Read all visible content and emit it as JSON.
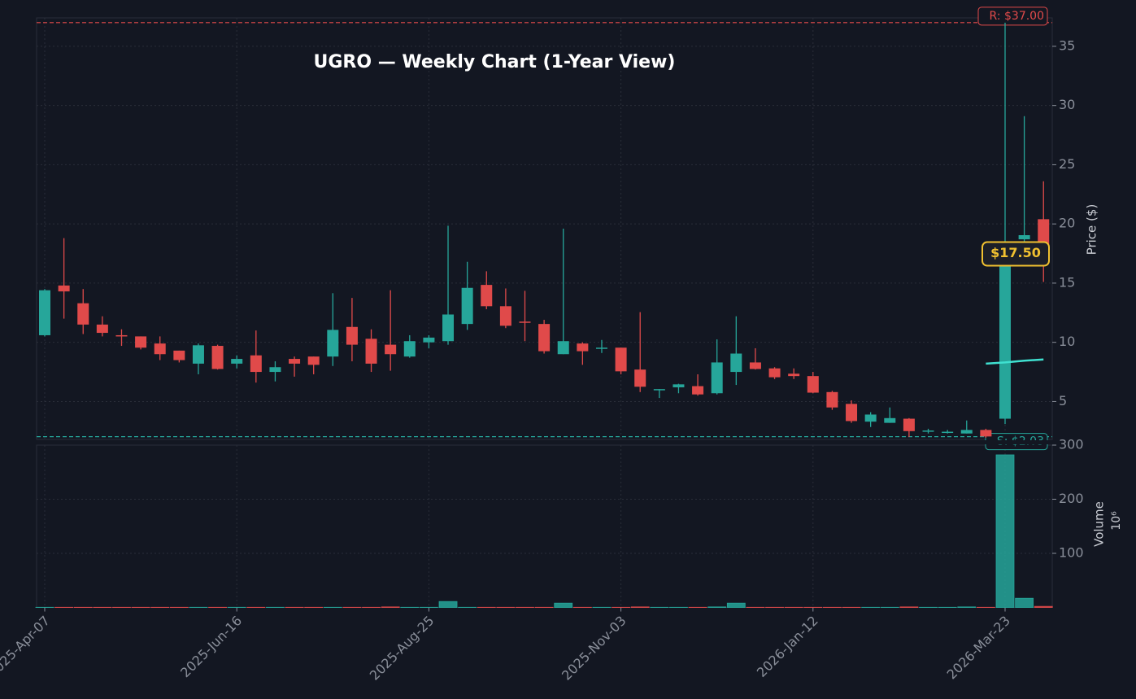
{
  "chart_data": {
    "type": "candlestick",
    "title": "UGRO — Weekly Chart (1-Year View)",
    "ylabel": "Price ($)",
    "x": [
      "2025-Apr-07",
      "2025-Apr-14",
      "2025-Apr-21",
      "2025-Apr-28",
      "2025-May-05",
      "2025-May-12",
      "2025-May-19",
      "2025-May-26",
      "2025-Jun-02",
      "2025-Jun-09",
      "2025-Jun-16",
      "2025-Jun-23",
      "2025-Jun-30",
      "2025-Jul-07",
      "2025-Jul-14",
      "2025-Jul-21",
      "2025-Jul-28",
      "2025-Aug-04",
      "2025-Aug-11",
      "2025-Aug-18",
      "2025-Aug-25",
      "2025-Sep-01",
      "2025-Sep-08",
      "2025-Sep-15",
      "2025-Sep-22",
      "2025-Sep-29",
      "2025-Oct-06",
      "2025-Oct-13",
      "2025-Oct-20",
      "2025-Oct-27",
      "2025-Nov-03",
      "2025-Nov-10",
      "2025-Nov-17",
      "2025-Nov-24",
      "2025-Dec-01",
      "2025-Dec-08",
      "2025-Dec-15",
      "2025-Dec-22",
      "2025-Dec-29",
      "2026-Jan-05",
      "2026-Jan-12",
      "2026-Jan-19",
      "2026-Jan-26",
      "2026-Feb-02",
      "2026-Feb-09",
      "2026-Feb-16",
      "2026-Feb-23",
      "2026-Mar-02",
      "2026-Mar-09",
      "2026-Mar-16",
      "2026-Mar-23",
      "2026-Mar-30",
      "2026-Apr-06"
    ],
    "xticks": [
      "2025-Apr-07",
      "2025-Jun-16",
      "2025-Aug-25",
      "2025-Nov-03",
      "2026-Jan-12",
      "2026-Mar-23"
    ],
    "open": [
      10.6,
      14.8,
      13.3,
      11.5,
      10.6,
      10.5,
      9.9,
      9.3,
      8.2,
      9.7,
      8.2,
      8.9,
      7.5,
      8.6,
      8.8,
      8.8,
      11.3,
      10.3,
      9.8,
      8.8,
      10.0,
      10.1,
      11.55,
      14.85,
      13.05,
      11.75,
      11.55,
      9.0,
      9.9,
      9.45,
      9.55,
      7.7,
      5.95,
      6.2,
      6.3,
      5.7,
      7.5,
      8.3,
      7.8,
      7.35,
      7.15,
      5.8,
      4.8,
      3.3,
      3.2,
      3.55,
      2.45,
      2.35,
      2.3,
      2.6,
      3.55,
      18.7,
      20.4
    ],
    "high": [
      14.5,
      18.8,
      14.5,
      12.2,
      11.1,
      10.5,
      10.5,
      9.3,
      9.9,
      9.8,
      8.9,
      11.0,
      8.4,
      8.8,
      8.8,
      14.15,
      13.75,
      11.1,
      14.4,
      10.6,
      10.6,
      19.85,
      16.8,
      16.0,
      14.55,
      14.35,
      11.9,
      19.6,
      10.0,
      10.2,
      9.55,
      12.55,
      6.05,
      6.5,
      7.3,
      10.25,
      12.2,
      9.5,
      7.9,
      7.8,
      7.5,
      5.9,
      5.1,
      4.1,
      4.5,
      3.6,
      2.7,
      2.6,
      3.4,
      2.7,
      37.0,
      29.1,
      23.6
    ],
    "low": [
      10.5,
      12.0,
      10.7,
      10.5,
      9.7,
      9.4,
      8.5,
      8.3,
      7.3,
      7.7,
      7.8,
      6.6,
      6.7,
      7.1,
      7.3,
      8.0,
      8.4,
      7.5,
      7.6,
      8.7,
      9.5,
      9.8,
      11.05,
      12.8,
      11.2,
      10.1,
      9.05,
      9.0,
      8.1,
      9.1,
      7.3,
      5.8,
      5.3,
      5.7,
      5.5,
      5.6,
      6.4,
      7.7,
      6.9,
      6.9,
      5.7,
      4.3,
      3.2,
      2.85,
      3.2,
      2.0,
      2.3,
      2.3,
      2.3,
      1.95,
      3.1,
      18.5,
      15.1
    ],
    "close": [
      14.4,
      14.3,
      11.5,
      10.8,
      10.5,
      9.55,
      9.0,
      8.5,
      9.75,
      7.75,
      8.6,
      7.5,
      7.9,
      8.2,
      8.1,
      11.05,
      9.8,
      8.2,
      9.0,
      10.1,
      10.4,
      12.35,
      14.6,
      13.05,
      11.4,
      11.65,
      9.25,
      10.1,
      9.25,
      9.55,
      7.55,
      6.25,
      6.05,
      6.45,
      5.6,
      8.3,
      9.05,
      7.75,
      7.05,
      7.15,
      5.75,
      4.5,
      3.35,
      3.9,
      3.6,
      2.5,
      2.55,
      2.45,
      2.6,
      2.05,
      16.9,
      19.05,
      17.5
    ],
    "up_color": "#26a69a",
    "down_color": "#e04a4a",
    "ylim": [
      1.8,
      37.4
    ],
    "yticks": [
      5,
      10,
      15,
      20,
      25,
      30,
      35
    ],
    "grid": true,
    "moving_average": {
      "color": "#3fe0d0",
      "values": [
        null,
        null,
        null,
        null,
        null,
        null,
        null,
        null,
        null,
        null,
        null,
        null,
        null,
        null,
        null,
        null,
        null,
        null,
        null,
        null,
        null,
        null,
        null,
        null,
        null,
        null,
        null,
        null,
        null,
        null,
        null,
        null,
        null,
        null,
        null,
        null,
        null,
        null,
        null,
        null,
        null,
        null,
        null,
        null,
        null,
        null,
        null,
        null,
        null,
        8.2,
        8.3,
        8.45,
        8.55
      ]
    },
    "resistance": {
      "value": 37.0,
      "label": "R: $37.00"
    },
    "support": {
      "value": 2.03,
      "label": "S: $2.03"
    },
    "last_price": {
      "value": 17.5,
      "label": "$17.50"
    },
    "volume": {
      "ylabel": "Volume",
      "scale_label": "10⁶",
      "values": [
        0.3,
        0.3,
        0.3,
        0.3,
        0.3,
        0.3,
        0.3,
        0.3,
        0.3,
        0.3,
        0.3,
        0.3,
        0.3,
        0.3,
        0.3,
        0.3,
        0.3,
        0.3,
        1,
        0.3,
        0.3,
        11,
        0.3,
        0.3,
        0.3,
        0.3,
        0.3,
        8,
        0.3,
        0.3,
        0.3,
        1,
        0.3,
        0.3,
        0.3,
        1,
        8,
        0.3,
        0.3,
        0.3,
        0.3,
        0.3,
        0.3,
        0.3,
        0.3,
        1,
        0.3,
        0.3,
        1,
        0.3,
        282,
        17,
        2
      ],
      "ylim": [
        0,
        300
      ],
      "yticks": [
        100,
        200,
        300
      ]
    }
  }
}
